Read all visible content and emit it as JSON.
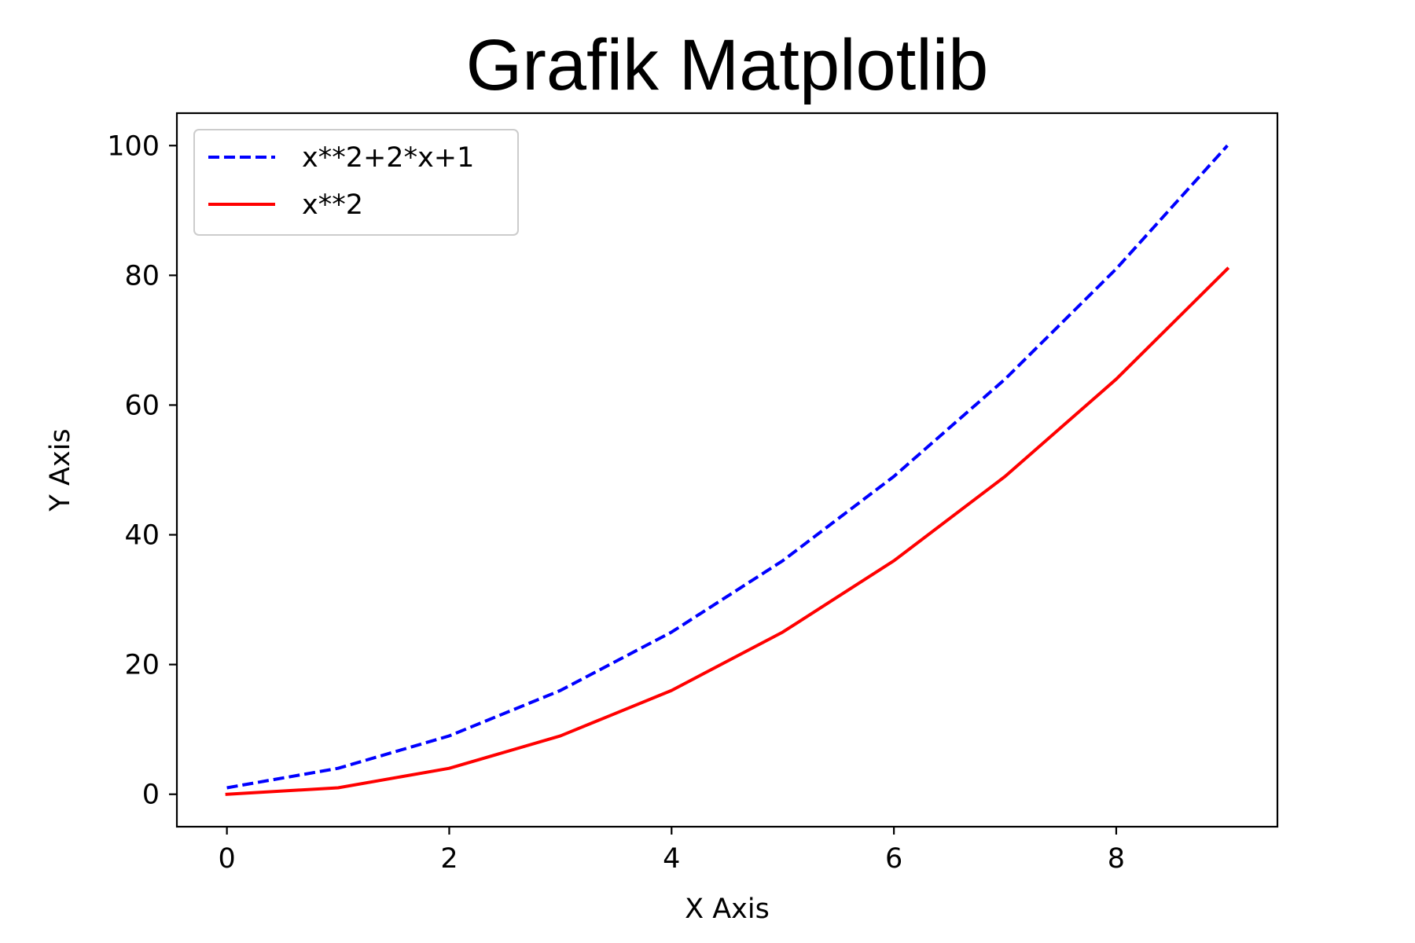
{
  "chart_data": {
    "type": "line",
    "title": "Grafik Matplotlib",
    "xlabel": "X Axis",
    "ylabel": "Y Axis",
    "xlim": [
      -0.45,
      9.45
    ],
    "ylim": [
      -5,
      105
    ],
    "xticks": [
      0,
      2,
      4,
      6,
      8
    ],
    "yticks": [
      0,
      20,
      40,
      60,
      80,
      100
    ],
    "grid": false,
    "legend_position": "upper left",
    "x": [
      0,
      1,
      2,
      3,
      4,
      5,
      6,
      7,
      8,
      9
    ],
    "series": [
      {
        "name": "x**2+2*x+1",
        "values": [
          1,
          4,
          9,
          16,
          25,
          36,
          49,
          64,
          81,
          100
        ],
        "color": "#0000ff",
        "line_style": "dashed"
      },
      {
        "name": "x**2",
        "values": [
          0,
          1,
          4,
          9,
          16,
          25,
          36,
          49,
          64,
          81
        ],
        "color": "#ff0000",
        "line_style": "solid"
      }
    ]
  }
}
